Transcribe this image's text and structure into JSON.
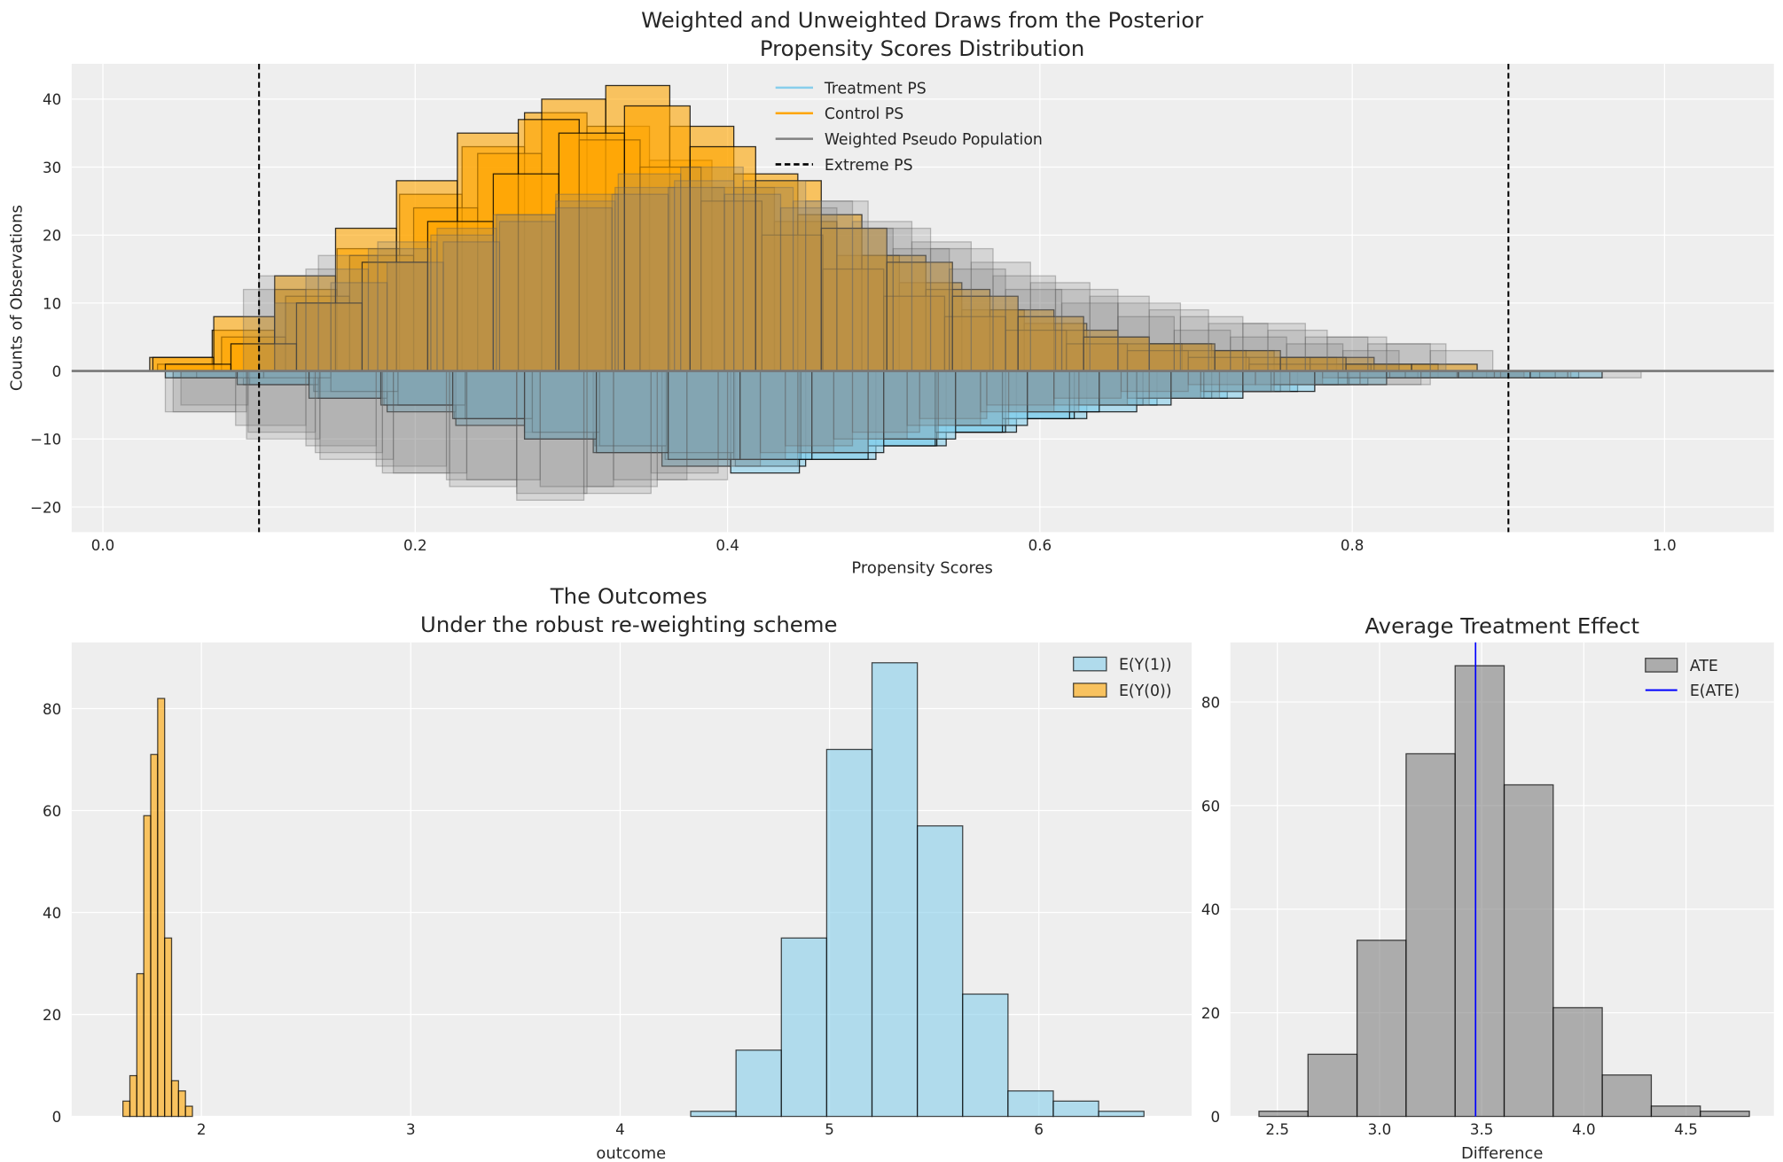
{
  "chart_data": [
    {
      "type": "bar",
      "title": "Weighted and Unweighted Draws from the Posterior\nPropensity Scores Distribution",
      "title_lines": [
        "Weighted and Unweighted Draws from the Posterior",
        "Propensity Scores Distribution"
      ],
      "xlabel": "Propensity Scores",
      "ylabel": "Counts of Observations",
      "xlim": [
        -0.02,
        1.07
      ],
      "ylim": [
        -23.7,
        45.2
      ],
      "xticks": [
        0.0,
        0.2,
        0.4,
        0.6,
        0.8,
        1.0
      ],
      "xtick_labels": [
        "0.0",
        "0.2",
        "0.4",
        "0.6",
        "0.8",
        "1.0"
      ],
      "yticks": [
        -20,
        -10,
        0,
        10,
        20,
        30,
        40
      ],
      "ytick_labels": [
        "−20",
        "−10",
        "0",
        "10",
        "20",
        "30",
        "40"
      ],
      "grid": true,
      "legend_placement": "top-center",
      "legend": [
        {
          "label": "Treatment PS",
          "style": "line",
          "color": "#87ceeb"
        },
        {
          "label": "Control PS",
          "style": "line",
          "color": "#ffa500"
        },
        {
          "label": "Weighted Pseudo Population",
          "style": "line",
          "color": "#808080"
        },
        {
          "label": "Extreme PS",
          "style": "dashed",
          "color": "#000000"
        }
      ],
      "extreme_ps_lines": [
        0.1,
        0.9
      ],
      "zero_line": 0,
      "colors": {
        "treatment": "#87ceeb",
        "control": "#ffa500",
        "weighted": "#808080"
      },
      "series": [
        {
          "group": "control",
          "bin_start": 0.03,
          "bin_width": 0.04,
          "values": [
            2,
            6,
            12,
            18,
            26,
            33,
            38,
            36,
            31,
            27,
            22,
            17,
            13,
            9,
            7,
            5,
            4,
            3,
            2,
            1
          ]
        },
        {
          "group": "control",
          "bin_start": 0.035,
          "bin_width": 0.041,
          "values": [
            1,
            5,
            11,
            17,
            24,
            32,
            40,
            42,
            36,
            29,
            23,
            17,
            12,
            9,
            6,
            4,
            3,
            2,
            2,
            1
          ]
        },
        {
          "group": "control",
          "bin_start": 0.032,
          "bin_width": 0.039,
          "values": [
            2,
            8,
            14,
            21,
            28,
            35,
            37,
            34,
            30,
            25,
            20,
            15,
            11,
            8,
            6,
            4,
            3,
            2,
            1,
            1
          ]
        },
        {
          "group": "control",
          "bin_start": 0.04,
          "bin_width": 0.042,
          "values": [
            1,
            4,
            10,
            16,
            22,
            29,
            35,
            39,
            33,
            28,
            21,
            16,
            11,
            8,
            5,
            4,
            3,
            2,
            1,
            1
          ]
        },
        {
          "group": "treatment",
          "bin_start": 0.045,
          "bin_width": 0.045,
          "values": [
            -1,
            -2,
            -3,
            -5,
            -7,
            -9,
            -11,
            -13,
            -14,
            -13,
            -11,
            -9,
            -7,
            -5,
            -4,
            -3,
            -2,
            -1,
            -1,
            -1
          ]
        },
        {
          "group": "treatment",
          "bin_start": 0.05,
          "bin_width": 0.044,
          "values": [
            -1,
            -2,
            -4,
            -6,
            -8,
            -10,
            -12,
            -14,
            -15,
            -13,
            -11,
            -9,
            -7,
            -5,
            -4,
            -3,
            -2,
            -1,
            -1,
            -1
          ]
        },
        {
          "group": "treatment",
          "bin_start": 0.06,
          "bin_width": 0.043,
          "values": [
            -1,
            -1,
            -3,
            -5,
            -7,
            -9,
            -11,
            -12,
            -13,
            -12,
            -11,
            -9,
            -7,
            -6,
            -4,
            -3,
            -2,
            -1,
            -1,
            -1
          ]
        },
        {
          "group": "treatment",
          "bin_start": 0.04,
          "bin_width": 0.046,
          "values": [
            -1,
            -2,
            -4,
            -5,
            -7,
            -10,
            -12,
            -13,
            -13,
            -12,
            -10,
            -8,
            -6,
            -5,
            -4,
            -3,
            -2,
            -1,
            -1,
            -1
          ]
        },
        {
          "group": "weighted",
          "bin_start": 0.1,
          "bin_width": 0.038,
          "values": [
            14,
            17,
            19,
            21,
            23,
            25,
            27,
            28,
            27,
            25,
            22,
            19,
            16,
            13,
            11,
            9,
            7,
            6,
            5,
            4
          ]
        },
        {
          "group": "weighted",
          "bin_start": 0.09,
          "bin_width": 0.04,
          "values": [
            12,
            15,
            18,
            20,
            23,
            26,
            29,
            30,
            28,
            25,
            21,
            18,
            14,
            12,
            10,
            8,
            7,
            5,
            4,
            3
          ]
        },
        {
          "group": "weighted",
          "bin_start": 0.11,
          "bin_width": 0.036,
          "values": [
            10,
            13,
            16,
            19,
            22,
            24,
            26,
            27,
            26,
            24,
            21,
            18,
            15,
            12,
            10,
            8,
            6,
            5,
            4,
            3
          ]
        },
        {
          "group": "weighted",
          "bin_start": 0.04,
          "bin_width": 0.045,
          "values": [
            -6,
            -8,
            -11,
            -14,
            -16,
            -18,
            -17,
            -16,
            -14,
            -12,
            -10,
            -8,
            -6,
            -5,
            -4,
            -3,
            -2,
            -2,
            -1,
            -1
          ]
        },
        {
          "group": "weighted",
          "bin_start": 0.05,
          "bin_width": 0.043,
          "values": [
            -5,
            -9,
            -12,
            -15,
            -17,
            -19,
            -18,
            -15,
            -13,
            -11,
            -9,
            -7,
            -5,
            -4,
            -3,
            -2,
            -2,
            -1,
            -1,
            -1
          ]
        },
        {
          "group": "weighted",
          "bin_start": 0.045,
          "bin_width": 0.047,
          "values": [
            -6,
            -10,
            -13,
            -15,
            -16,
            -17,
            -16,
            -14,
            -12,
            -10,
            -8,
            -6,
            -5,
            -4,
            -3,
            -2,
            -2,
            -1,
            -1,
            -1
          ]
        }
      ]
    },
    {
      "type": "bar",
      "title_lines": [
        "The Outcomes",
        "Under the robust re-weighting scheme"
      ],
      "xlabel": "outcome",
      "ylabel": "",
      "xlim": [
        1.38,
        6.73
      ],
      "ylim": [
        0,
        93
      ],
      "xticks": [
        2,
        3,
        4,
        5,
        6
      ],
      "xtick_labels": [
        "2",
        "3",
        "4",
        "5",
        "6"
      ],
      "yticks": [
        0,
        20,
        40,
        60,
        80
      ],
      "ytick_labels": [
        "0",
        "20",
        "40",
        "60",
        "80"
      ],
      "grid": true,
      "legend_placement": "top-right",
      "series": [
        {
          "name": "E(Y(1))",
          "color": "#87ceeb",
          "bin_start": 4.337,
          "bin_width": 0.2165,
          "values": [
            1,
            13,
            35,
            72,
            89,
            57,
            24,
            5,
            3,
            1
          ]
        },
        {
          "name": "E(Y(0))",
          "color": "#ffa500",
          "bin_start": 1.625,
          "bin_width": 0.0332,
          "values": [
            3,
            8,
            28,
            59,
            71,
            82,
            35,
            7,
            5,
            2
          ]
        }
      ]
    },
    {
      "type": "bar",
      "title_lines": [
        "Average Treatment Effect"
      ],
      "xlabel": "Difference",
      "ylabel": "",
      "xlim": [
        2.27,
        4.93
      ],
      "ylim": [
        0,
        91.5
      ],
      "xticks": [
        2.5,
        3.0,
        3.5,
        4.0,
        4.5
      ],
      "xtick_labels": [
        "2.5",
        "3.0",
        "3.5",
        "4.0",
        "4.5"
      ],
      "yticks": [
        0,
        20,
        40,
        60,
        80
      ],
      "ytick_labels": [
        "0",
        "20",
        "40",
        "60",
        "80"
      ],
      "grid": true,
      "legend_placement": "top-right",
      "series": [
        {
          "name": "ATE",
          "color": "#808080",
          "bin_start": 2.41,
          "bin_width": 0.24,
          "values": [
            1,
            12,
            34,
            70,
            87,
            64,
            21,
            8,
            2,
            1
          ]
        }
      ],
      "vline": {
        "name": "E(ATE)",
        "x": 3.47,
        "color": "#0000ff"
      }
    }
  ]
}
